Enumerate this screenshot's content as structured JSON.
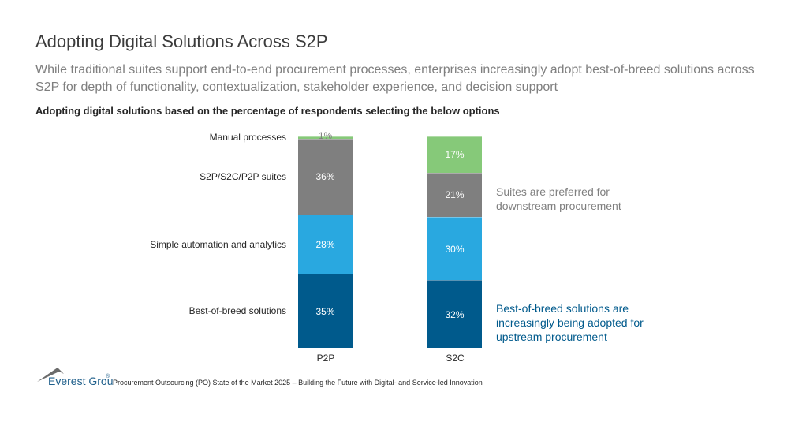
{
  "header": {
    "title": "Adopting Digital Solutions Across S2P",
    "subtitle": "While traditional suites support end-to-end procurement processes, enterprises increasingly adopt best-of-breed solutions across S2P for depth of functionality, contextualization, stakeholder experience, and decision support"
  },
  "chart_data": {
    "type": "bar",
    "stacked": true,
    "title": "Adopting digital solutions based on the percentage of respondents selecting the below options",
    "categories": [
      "P2P",
      "S2C"
    ],
    "ylim": [
      0,
      100
    ],
    "series": [
      {
        "name": "Best-of-breed solutions",
        "values": [
          35,
          32
        ],
        "color": "#005a8c"
      },
      {
        "name": "Simple automation and analytics",
        "values": [
          28,
          30
        ],
        "color": "#29a8e0"
      },
      {
        "name": "S2P/S2C/P2P suites",
        "values": [
          36,
          21
        ],
        "color": "#7f7f7f"
      },
      {
        "name": "Manual processes",
        "values": [
          1,
          17
        ],
        "color": "#86c979"
      }
    ],
    "value_labels": [
      [
        "35%",
        "32%"
      ],
      [
        "28%",
        "30%"
      ],
      [
        "36%",
        "21%"
      ],
      [
        "1%",
        "17%"
      ]
    ],
    "annotations": [
      {
        "text": "Suites are preferred for downstream procurement",
        "color": "#7f7f7f"
      },
      {
        "text": "Best-of-breed solutions are increasingly being adopted for upstream procurement",
        "color": "#005a8c"
      }
    ]
  },
  "footer": {
    "logo": "Everest Group®",
    "source": "Procurement Outsourcing (PO) State of the Market 2025 – Building the Future with Digital- and Service-led Innovation"
  }
}
